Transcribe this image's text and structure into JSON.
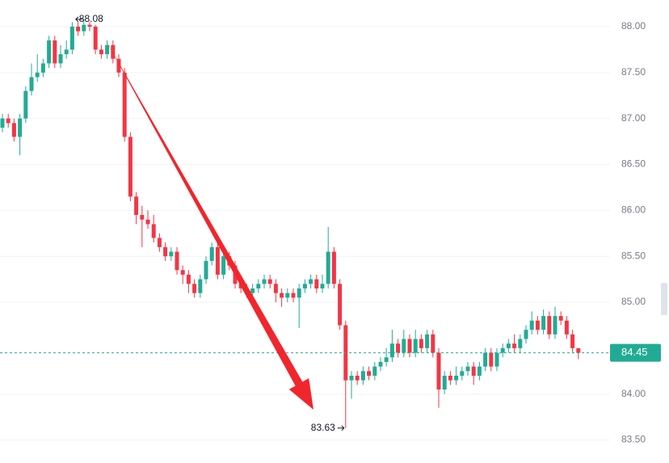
{
  "chart_data": {
    "type": "candlestick",
    "up_color": "#22ab94",
    "down_color": "#f23645",
    "ylim": [
      83.25,
      88.29
    ],
    "yticks": [
      {
        "value": 88,
        "label": "88.00"
      },
      {
        "value": 87.5,
        "label": "87.50"
      },
      {
        "value": 87,
        "label": "87.00"
      },
      {
        "value": 86.5,
        "label": "86.50"
      },
      {
        "value": 86,
        "label": "86.00"
      },
      {
        "value": 85.5,
        "label": "85.50"
      },
      {
        "value": 85,
        "label": "85.00"
      },
      {
        "value": 84,
        "label": "84.00"
      },
      {
        "value": 83.5,
        "label": "83.50"
      }
    ],
    "grid": true,
    "high_label_index": 14,
    "low_label_index": 59,
    "open": [
      86.9,
      87.0,
      86.95,
      86.8,
      87.0,
      87.3,
      87.45,
      87.5,
      87.6,
      87.85,
      87.6,
      87.7,
      87.75,
      88.0,
      87.95,
      88.02,
      88.0,
      87.75,
      87.7,
      87.8,
      87.65,
      87.5,
      86.8,
      86.15,
      85.95,
      85.9,
      85.85,
      85.7,
      85.6,
      85.5,
      85.55,
      85.35,
      85.3,
      85.2,
      85.1,
      85.25,
      85.45,
      85.6,
      85.3,
      85.5,
      85.4,
      85.2,
      85.15,
      85.1,
      85.15,
      85.2,
      85.25,
      85.2,
      85.1,
      85.05,
      85.1,
      85.05,
      85.15,
      85.2,
      85.25,
      85.15,
      85.2,
      85.55,
      85.2,
      84.75,
      84.15,
      84.2,
      84.15,
      84.25,
      84.2,
      84.3,
      84.35,
      84.4,
      84.55,
      84.45,
      84.6,
      84.45,
      84.6,
      84.5,
      84.65,
      84.45,
      84.05,
      84.2,
      84.15,
      84.2,
      84.25,
      84.3,
      84.2,
      84.3,
      84.45,
      84.3,
      84.45,
      84.5,
      84.55,
      84.5,
      84.6,
      84.7,
      84.8,
      84.7,
      84.85,
      84.65,
      84.85,
      84.8,
      84.65,
      84.5
    ],
    "high": [
      87.05,
      87.05,
      87.0,
      87.05,
      87.35,
      87.6,
      87.7,
      87.65,
      87.9,
      87.9,
      87.8,
      87.85,
      88.05,
      88.05,
      88.08,
      88.05,
      88.02,
      87.8,
      87.85,
      87.85,
      87.7,
      87.55,
      86.85,
      86.2,
      86.05,
      86.0,
      85.95,
      85.75,
      85.65,
      85.6,
      85.6,
      85.4,
      85.35,
      85.25,
      85.3,
      85.5,
      85.65,
      85.65,
      85.6,
      85.55,
      85.45,
      85.25,
      85.2,
      85.2,
      85.25,
      85.3,
      85.3,
      85.25,
      85.15,
      85.15,
      85.15,
      85.2,
      85.25,
      85.3,
      85.3,
      85.3,
      85.82,
      85.6,
      85.25,
      84.8,
      84.25,
      84.25,
      84.3,
      84.3,
      84.35,
      84.4,
      84.5,
      84.7,
      84.6,
      84.7,
      84.65,
      84.7,
      84.65,
      84.7,
      84.7,
      84.5,
      84.25,
      84.25,
      84.3,
      84.3,
      84.35,
      84.35,
      84.35,
      84.5,
      84.5,
      84.5,
      84.55,
      84.6,
      84.65,
      84.65,
      84.75,
      84.9,
      84.85,
      84.92,
      84.9,
      84.95,
      84.9,
      84.85,
      84.7,
      84.5
    ],
    "low": [
      86.85,
      86.9,
      86.75,
      86.6,
      86.95,
      87.25,
      87.4,
      87.45,
      87.55,
      87.55,
      87.55,
      87.65,
      87.7,
      87.9,
      87.9,
      87.95,
      87.7,
      87.65,
      87.65,
      87.6,
      87.45,
      86.75,
      86.1,
      85.85,
      85.6,
      85.8,
      85.65,
      85.55,
      85.45,
      85.45,
      85.3,
      85.2,
      85.1,
      85.05,
      85.05,
      85.2,
      85.4,
      85.25,
      85.25,
      85.35,
      85.15,
      85.1,
      85.05,
      85.05,
      85.1,
      85.15,
      85.15,
      85.0,
      84.95,
      85.0,
      85.0,
      84.72,
      85.1,
      85.15,
      85.1,
      85.1,
      85.15,
      85.15,
      84.7,
      83.63,
      83.95,
      84.1,
      84.1,
      84.15,
      84.15,
      84.25,
      84.3,
      84.35,
      84.4,
      84.4,
      84.4,
      84.4,
      84.45,
      84.45,
      84.4,
      83.85,
      84.0,
      84.1,
      84.1,
      84.15,
      84.2,
      84.1,
      84.15,
      84.25,
      84.25,
      84.25,
      84.4,
      84.45,
      84.45,
      84.45,
      84.55,
      84.65,
      84.65,
      84.65,
      84.6,
      84.6,
      84.75,
      84.6,
      84.45,
      84.38
    ],
    "close": [
      87.0,
      86.95,
      86.8,
      87.0,
      87.3,
      87.45,
      87.5,
      87.6,
      87.85,
      87.6,
      87.7,
      87.75,
      88.0,
      87.95,
      88.02,
      88.0,
      87.75,
      87.7,
      87.8,
      87.65,
      87.5,
      86.8,
      86.15,
      85.95,
      85.9,
      85.85,
      85.7,
      85.6,
      85.5,
      85.55,
      85.35,
      85.3,
      85.2,
      85.1,
      85.25,
      85.45,
      85.6,
      85.3,
      85.5,
      85.4,
      85.2,
      85.15,
      85.1,
      85.15,
      85.2,
      85.25,
      85.2,
      85.1,
      85.05,
      85.1,
      85.05,
      85.15,
      85.2,
      85.25,
      85.15,
      85.2,
      85.55,
      85.2,
      84.75,
      84.15,
      84.2,
      84.15,
      84.25,
      84.2,
      84.3,
      84.35,
      84.4,
      84.55,
      84.45,
      84.6,
      84.45,
      84.6,
      84.5,
      84.65,
      84.45,
      84.05,
      84.2,
      84.15,
      84.2,
      84.25,
      84.3,
      84.2,
      84.3,
      84.45,
      84.3,
      84.45,
      84.5,
      84.55,
      84.5,
      84.6,
      84.7,
      84.8,
      84.7,
      84.85,
      84.65,
      84.85,
      84.8,
      84.65,
      84.5,
      84.45
    ]
  }
}
